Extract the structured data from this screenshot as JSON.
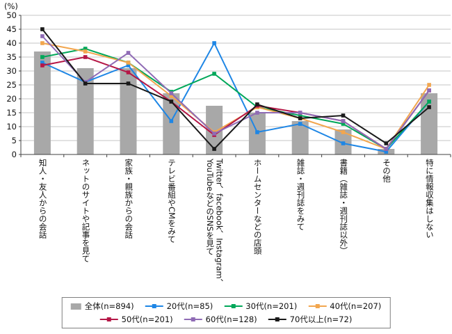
{
  "chart_data": {
    "type": "bar+line",
    "title": "",
    "ylabel": "(%)",
    "ylim": [
      0,
      50
    ],
    "ytick_step": 5,
    "grid": true,
    "legend_position": "bottom",
    "categories": [
      "知人・友人からの会話",
      "ネットのサイトや記事を見て",
      "家族・親族からの会話",
      "テレビ番組やCMをみて",
      "Twitter、facebook、Instagram、YouTubeなどのSNSを見て",
      "ホームセンターなどの店頭",
      "雑誌・週刊誌をみて",
      "書籍（雑誌・週刊誌以外）",
      "その他",
      "特に情報収集はしない"
    ],
    "series": [
      {
        "name": "全体(n=894)",
        "type": "bar",
        "color": "#a8a8a8",
        "values": [
          37,
          31,
          31,
          22,
          17.5,
          15,
          12,
          9,
          2,
          22
        ]
      },
      {
        "name": "20代(n=85)",
        "type": "line",
        "color": "#1e86e5",
        "values": [
          33,
          26,
          32,
          12,
          40,
          8,
          11,
          4,
          1,
          19
        ]
      },
      {
        "name": "30代(n=201)",
        "type": "line",
        "color": "#00a759",
        "values": [
          35,
          38,
          33,
          22.5,
          29,
          17,
          14,
          11,
          2,
          19
        ]
      },
      {
        "name": "40代(n=207)",
        "type": "line",
        "color": "#f2a64e",
        "values": [
          40,
          37,
          33,
          21,
          8,
          17,
          13,
          8,
          2,
          25
        ]
      },
      {
        "name": "50代(n=201)",
        "type": "line",
        "color": "#b51746",
        "values": [
          32,
          35,
          29.5,
          19,
          7,
          17.5,
          15,
          12,
          2,
          23
        ]
      },
      {
        "name": "60代(n=128)",
        "type": "line",
        "color": "#8f6bb5",
        "values": [
          42.5,
          26,
          36.5,
          22,
          7.5,
          15,
          15,
          12,
          2,
          23
        ]
      },
      {
        "name": "70代以上(n=72)",
        "type": "line",
        "color": "#1a1a1a",
        "values": [
          45,
          25.5,
          25.5,
          19,
          2,
          18,
          13,
          14,
          4,
          17
        ]
      }
    ],
    "colors": {
      "gridline": "#c6c6c6",
      "axis": "#404040",
      "text": "#111111"
    }
  },
  "legend": {
    "rows": [
      [
        0,
        1,
        2,
        3
      ],
      [
        4,
        5,
        6
      ]
    ]
  }
}
